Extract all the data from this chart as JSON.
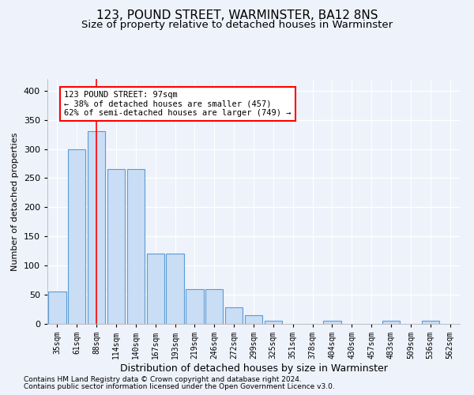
{
  "title1": "123, POUND STREET, WARMINSTER, BA12 8NS",
  "title2": "Size of property relative to detached houses in Warminster",
  "xlabel": "Distribution of detached houses by size in Warminster",
  "ylabel": "Number of detached properties",
  "categories": [
    "35sqm",
    "61sqm",
    "88sqm",
    "114sqm",
    "140sqm",
    "167sqm",
    "193sqm",
    "219sqm",
    "246sqm",
    "272sqm",
    "299sqm",
    "325sqm",
    "351sqm",
    "378sqm",
    "404sqm",
    "430sqm",
    "457sqm",
    "483sqm",
    "509sqm",
    "536sqm",
    "562sqm"
  ],
  "values": [
    55,
    300,
    330,
    265,
    265,
    120,
    120,
    60,
    60,
    28,
    15,
    5,
    0,
    0,
    5,
    0,
    0,
    5,
    0,
    5,
    0
  ],
  "bar_color": "#c9ddf5",
  "bar_edge_color": "#5b9bd5",
  "red_line_index": 2,
  "annotation_text": "123 POUND STREET: 97sqm\n← 38% of detached houses are smaller (457)\n62% of semi-detached houses are larger (749) →",
  "annotation_box_color": "white",
  "annotation_box_edge": "red",
  "footnote1": "Contains HM Land Registry data © Crown copyright and database right 2024.",
  "footnote2": "Contains public sector information licensed under the Open Government Licence v3.0.",
  "ylim": [
    0,
    420
  ],
  "yticks": [
    0,
    50,
    100,
    150,
    200,
    250,
    300,
    350,
    400
  ],
  "bg_color": "#eef2fb",
  "grid_color": "#ffffff",
  "title1_fontsize": 11,
  "title2_fontsize": 9.5,
  "ylabel_fontsize": 8,
  "xlabel_fontsize": 9,
  "tick_fontsize": 8,
  "xtick_fontsize": 7,
  "annot_fontsize": 7.5,
  "footnote_fontsize": 6.5
}
